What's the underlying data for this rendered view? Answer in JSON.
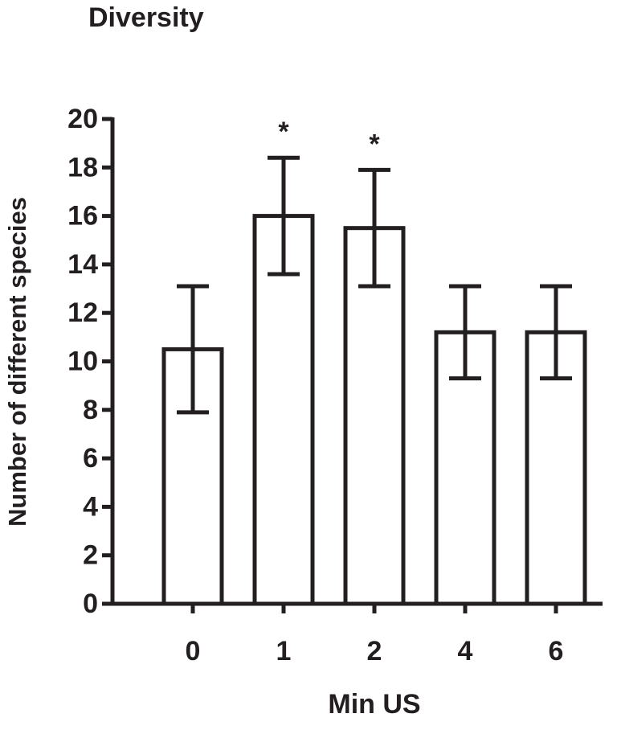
{
  "chart_data": {
    "type": "bar",
    "title": "Diversity",
    "x_label": "Min US",
    "y_label": "Number of different species",
    "categories": [
      "0",
      "1",
      "2",
      "4",
      "6"
    ],
    "values": [
      10.5,
      16,
      15.5,
      11.2,
      11.2
    ],
    "errors": [
      2.6,
      2.4,
      2.4,
      1.9,
      1.9
    ],
    "significance": [
      null,
      "*",
      "*",
      null,
      null
    ],
    "color": "#ffffff",
    "edge_color": "#231f20",
    "ylim": [
      0,
      20
    ],
    "yticks": [
      0,
      2,
      4,
      6,
      8,
      10,
      12,
      14,
      16,
      18,
      20
    ],
    "grid": false
  }
}
